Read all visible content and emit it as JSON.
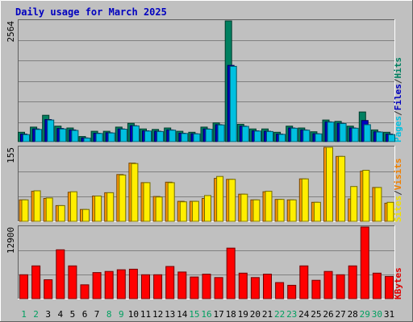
{
  "chart_data": {
    "type": "bar",
    "title": "Daily usage for March 2025",
    "categories": [
      "1",
      "2",
      "3",
      "4",
      "5",
      "6",
      "7",
      "8",
      "9",
      "10",
      "11",
      "12",
      "13",
      "14",
      "15",
      "16",
      "17",
      "18",
      "19",
      "20",
      "21",
      "22",
      "23",
      "24",
      "25",
      "26",
      "27",
      "28",
      "29",
      "30",
      "31"
    ],
    "weekend_days": [
      1,
      2,
      8,
      9,
      15,
      16,
      22,
      23,
      29,
      30
    ],
    "panels": [
      {
        "key": "hits",
        "max_label": "2564",
        "ymax": 2564,
        "legend": [
          "Pages",
          "/",
          "Files",
          "/",
          "Hits"
        ],
        "legend_colors": [
          "#00c0e0",
          "#303030",
          "#0000c0",
          "#303030",
          "#008060"
        ],
        "series": [
          {
            "name": "Hits",
            "color": "#008060",
            "values": [
              200,
              310,
              560,
              330,
              290,
              110,
              220,
              220,
              310,
              390,
              270,
              260,
              290,
              220,
              200,
              310,
              400,
              2564,
              370,
              270,
              270,
              200,
              330,
              290,
              210,
              460,
              430,
              330,
              630,
              250,
              200
            ]
          },
          {
            "name": "Files",
            "color": "#0000c0",
            "values": [
              160,
              270,
              470,
              280,
              250,
              80,
              180,
              190,
              270,
              340,
              230,
              220,
              250,
              180,
              170,
              270,
              360,
              1620,
              330,
              230,
              220,
              160,
              290,
              250,
              170,
              420,
              390,
              290,
              450,
              210,
              160
            ]
          },
          {
            "name": "Pages",
            "color": "#00c0e0",
            "values": [
              150,
              260,
              460,
              270,
              240,
              75,
              175,
              185,
              265,
              335,
              225,
              215,
              245,
              175,
              165,
              265,
              355,
              1600,
              325,
              225,
              215,
              155,
              285,
              245,
              165,
              415,
              385,
              285,
              360,
              205,
              150
            ]
          }
        ]
      },
      {
        "key": "visits",
        "max_label": "155",
        "ymax": 155,
        "legend": [
          "Sites",
          "/",
          "Visits"
        ],
        "legend_colors": [
          "#f0e000",
          "#303030",
          "#f08000"
        ],
        "series": [
          {
            "name": "Visits",
            "color": "#ff9900",
            "values": [
              45,
              63,
              48,
              33,
              61,
              25,
              53,
              60,
              98,
              122,
              81,
              52,
              82,
              42,
              42,
              48,
              90,
              88,
              57,
              45,
              62,
              46,
              45,
              89,
              40,
              155,
              136,
              47,
              105,
              71,
              38
            ]
          },
          {
            "name": "Sites",
            "color": "#ffee00",
            "values": [
              45,
              64,
              49,
              33,
              62,
              25,
              53,
              60,
              97,
              121,
              81,
              51,
              81,
              41,
              42,
              54,
              94,
              88,
              57,
              45,
              63,
              46,
              45,
              89,
              40,
              155,
              136,
              73,
              107,
              71,
              40
            ]
          }
        ]
      },
      {
        "key": "kbytes",
        "max_label": "12900",
        "ymax": 12900,
        "legend": [
          "KBytes"
        ],
        "legend_colors": [
          "#e00000"
        ],
        "series": [
          {
            "name": "KBytes",
            "color": "#ff0000",
            "values": [
              4300,
              5900,
              3400,
              8800,
              5900,
              2500,
              4700,
              4900,
              5200,
              5300,
              4300,
              4300,
              5800,
              4800,
              3900,
              4400,
              3800,
              9100,
              4600,
              3800,
              4400,
              2900,
              2400,
              5900,
              3300,
              4900,
              4300,
              5900,
              12900,
              4600,
              4000
            ]
          }
        ]
      }
    ]
  }
}
